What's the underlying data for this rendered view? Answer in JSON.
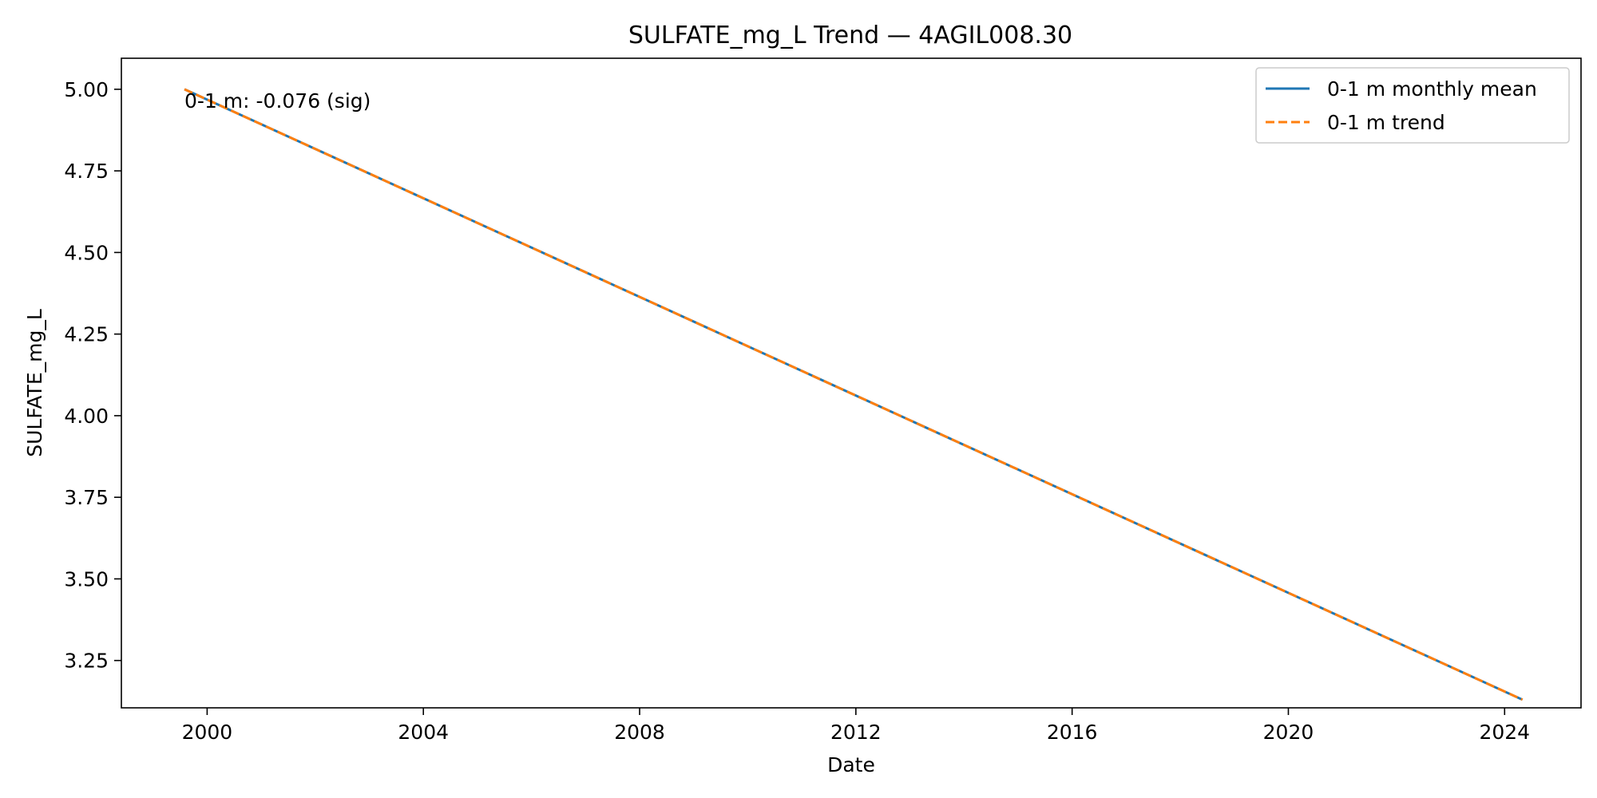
{
  "chart_data": {
    "type": "line",
    "title": "SULFATE_mg_L Trend — 4AGIL008.30",
    "xlabel": "Date",
    "ylabel": "SULFATE_mg_L",
    "xlim": [
      "1998-06-01",
      "2025-06-01"
    ],
    "ylim": [
      3.105,
      5.095
    ],
    "x_ticks": [
      "2000",
      "2004",
      "2008",
      "2012",
      "2016",
      "2020",
      "2024"
    ],
    "y_ticks": [
      "3.25",
      "3.50",
      "3.75",
      "4.00",
      "4.25",
      "4.50",
      "4.75",
      "5.00"
    ],
    "grid": false,
    "legend_position": "top-right",
    "series": [
      {
        "name": "0-1 m monthly mean",
        "color": "#1f77b4",
        "style": "solid",
        "x": [
          "1999-08-01",
          "2024-05-01"
        ],
        "y": [
          5.0,
          3.13
        ]
      },
      {
        "name": "0-1 m trend",
        "color": "#ff7f0e",
        "style": "dashed",
        "x": [
          "1999-08-01",
          "2024-05-01"
        ],
        "y": [
          5.0,
          3.13
        ]
      }
    ],
    "annotations": [
      {
        "text": "0-1 m: -0.076 (sig)",
        "x": "1999-08-01",
        "y": 5.0
      }
    ]
  }
}
